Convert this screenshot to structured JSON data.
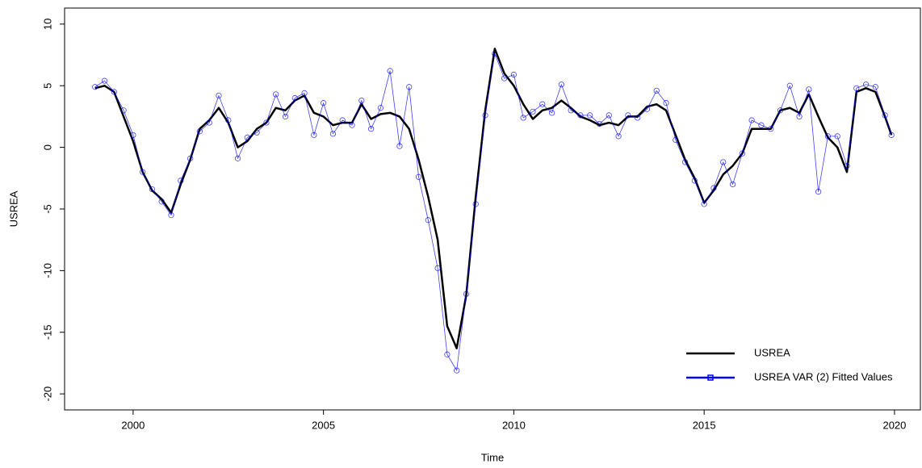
{
  "chart_data": {
    "type": "line",
    "xlabel": "Time",
    "ylabel": "USREA",
    "x": [
      1999.0,
      1999.25,
      1999.5,
      1999.75,
      2000.0,
      2000.25,
      2000.5,
      2000.75,
      2001.0,
      2001.25,
      2001.5,
      2001.75,
      2002.0,
      2002.25,
      2002.5,
      2002.75,
      2003.0,
      2003.25,
      2003.5,
      2003.75,
      2004.0,
      2004.25,
      2004.5,
      2004.75,
      2005.0,
      2005.25,
      2005.5,
      2005.75,
      2006.0,
      2006.25,
      2006.5,
      2006.75,
      2007.0,
      2007.25,
      2007.5,
      2007.75,
      2008.0,
      2008.25,
      2008.5,
      2008.75,
      2009.0,
      2009.25,
      2009.5,
      2009.75,
      2010.0,
      2010.25,
      2010.5,
      2010.75,
      2011.0,
      2011.25,
      2011.5,
      2011.75,
      2012.0,
      2012.25,
      2012.5,
      2012.75,
      2013.0,
      2013.25,
      2013.5,
      2013.75,
      2014.0,
      2014.25,
      2014.5,
      2014.75,
      2015.0,
      2015.25,
      2015.5,
      2015.75,
      2016.0,
      2016.25,
      2016.5,
      2016.75,
      2017.0,
      2017.25,
      2017.5,
      2017.75,
      2018.0,
      2018.25,
      2018.5,
      2018.75,
      2019.0,
      2019.25,
      2019.5,
      2019.75,
      2019.92
    ],
    "series": [
      {
        "name": "USREA",
        "color": "#000000",
        "markers": false,
        "values": [
          4.8,
          5.0,
          4.5,
          2.5,
          0.5,
          -2,
          -3.5,
          -4.2,
          -5.3,
          -3,
          -1,
          1.5,
          2.2,
          3.2,
          2.0,
          0,
          0.5,
          1.5,
          2.0,
          3.2,
          3.0,
          3.8,
          4.2,
          2.8,
          2.5,
          1.8,
          2.0,
          2.0,
          3.5,
          2.3,
          2.7,
          2.8,
          2.5,
          1.5,
          -1,
          -4,
          -7.5,
          -14.5,
          -16.3,
          -12,
          -4,
          3,
          8,
          6,
          5.0,
          3.5,
          2.3,
          3.0,
          3.2,
          3.8,
          3.2,
          2.5,
          2.2,
          1.8,
          2.0,
          1.8,
          2.5,
          2.5,
          3.3,
          3.5,
          3.0,
          1.0,
          -1,
          -2.5,
          -4.5,
          -3.5,
          -2.2,
          -1.5,
          -0.5,
          1.5,
          1.5,
          1.5,
          3.0,
          3.2,
          2.8,
          4.3,
          2.5,
          0.8,
          0,
          -2.0,
          4.5,
          4.8,
          4.5,
          2.5,
          1.0
        ]
      },
      {
        "name": "USREA VAR (2) Fitted Values",
        "color": "#0000ff",
        "markers": true,
        "values": [
          4.9,
          5.4,
          4.5,
          3.0,
          1.0,
          -2.0,
          -3.4,
          -4.4,
          -5.5,
          -2.7,
          -0.9,
          1.3,
          2.0,
          4.2,
          2.2,
          -0.9,
          0.8,
          1.2,
          2.0,
          4.3,
          2.5,
          4.0,
          4.4,
          1.0,
          3.6,
          1.1,
          2.2,
          1.8,
          3.8,
          1.5,
          3.2,
          6.2,
          0.1,
          4.9,
          -2.4,
          -5.9,
          -9.8,
          -16.8,
          -18.1,
          -11.9,
          -4.6,
          2.6,
          7.6,
          5.6,
          5.9,
          2.4,
          2.9,
          3.5,
          2.8,
          5.1,
          3.0,
          2.6,
          2.6,
          1.9,
          2.6,
          0.9,
          2.6,
          2.4,
          3.1,
          4.6,
          3.6,
          0.6,
          -1.2,
          -2.7,
          -4.6,
          -3.3,
          -1.2,
          -3.0,
          -0.5,
          2.2,
          1.8,
          1.5,
          3.0,
          5.0,
          2.5,
          4.7,
          -3.6,
          0.9,
          0.9,
          -1.5,
          4.8,
          5.1,
          4.9,
          2.6,
          1.0
        ]
      }
    ],
    "xlim": [
      1998.2,
      2020.68
    ],
    "ylim": [
      -21.3,
      11.3
    ],
    "xticks": [
      2000,
      2005,
      2010,
      2015,
      2020
    ],
    "yticks": [
      -20,
      -15,
      -10,
      -5,
      0,
      5,
      10
    ],
    "grid": false,
    "legend": "bottomright"
  }
}
